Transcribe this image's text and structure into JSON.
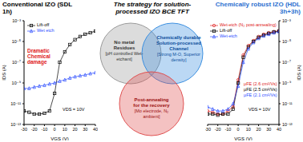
{
  "title": "The strategy for solution-processed IZO BCE TFT",
  "chart_data": [
    {
      "type": "line",
      "title": "Conventional IZO (SDL 1h)",
      "x_label": "VGS (V)",
      "y_label": "IDS (A)",
      "log": "y",
      "legend": "upper left",
      "xlim": [
        -30,
        40
      ],
      "xticks": [
        -30,
        -20,
        -10,
        0,
        10,
        20,
        30,
        40
      ],
      "ylim": [
        1e-13,
        0.001
      ],
      "yticks": [
        {
          "value": 1e-13,
          "label": "10⁻¹³"
        },
        {
          "value": 1e-11,
          "label": "10⁻¹¹"
        },
        {
          "value": 1e-09,
          "label": "10⁻⁹"
        },
        {
          "value": 1e-07,
          "label": "10⁻⁷"
        },
        {
          "value": 1e-05,
          "label": "10⁻⁵"
        },
        {
          "value": 0.001,
          "label": "10⁻³"
        }
      ],
      "x": [
        -30,
        -25,
        -20,
        -15,
        -10,
        -5,
        0,
        5,
        10,
        15,
        20,
        25,
        30,
        35,
        40
      ],
      "series": [
        {
          "name": "Lift-off",
          "color": "#000000",
          "marker": "square",
          "values": [
            2e-12,
            1.5e-12,
            1e-12,
            1e-12,
            1.2e-12,
            2e-12,
            1e-10,
            1e-07,
            1e-06,
            5e-06,
            1.5e-05,
            3e-05,
            5e-05,
            7e-05,
            0.0001
          ]
        },
        {
          "name": "Wet etch",
          "color": "#2b4cff",
          "marker": "triangle",
          "values": [
            3e-10,
            3e-10,
            4e-10,
            5e-10,
            6e-10,
            8e-10,
            1e-09,
            1.5e-09,
            2e-09,
            3e-09,
            4e-09,
            5e-09,
            6e-09,
            8e-09,
            1e-08
          ]
        }
      ],
      "annotations": [
        "Dramatic Chemical damage",
        "VDS = 10V"
      ]
    },
    {
      "type": "line",
      "title": "Chemically robust IZO (HDL 3h+3h)",
      "x_label": "VGS (V)",
      "y_label": "IDS (A)",
      "log": "y",
      "legend": "upper left",
      "xlim": [
        -30,
        40
      ],
      "xticks": [
        -30,
        -20,
        -10,
        0,
        10,
        20,
        30,
        40
      ],
      "ylim": [
        1e-13,
        0.001
      ],
      "yticks": [
        {
          "value": 1e-13,
          "label": "10⁻¹³"
        },
        {
          "value": 1e-11,
          "label": "10⁻¹¹"
        },
        {
          "value": 1e-09,
          "label": "10⁻⁹"
        },
        {
          "value": 1e-07,
          "label": "10⁻⁷"
        },
        {
          "value": 1e-05,
          "label": "10⁻⁵"
        },
        {
          "value": 0.001,
          "label": "10⁻³"
        }
      ],
      "x": [
        -30,
        -25,
        -20,
        -15,
        -10,
        -5,
        0,
        5,
        10,
        15,
        20,
        25,
        30,
        35,
        40
      ],
      "series": [
        {
          "name": "Wet-etch (N₂ post-annealing)",
          "color": "#e02020",
          "marker": "circle",
          "values": [
            2e-12,
            1.5e-12,
            1e-12,
            1e-12,
            2e-12,
            5e-12,
            2e-09,
            5e-07,
            4e-06,
            1.2e-05,
            3e-05,
            5e-05,
            7e-05,
            9e-05,
            0.00011
          ]
        },
        {
          "name": "Lift-off",
          "color": "#000000",
          "marker": "square",
          "values": [
            1e-12,
            1e-12,
            8e-13,
            1e-12,
            1e-12,
            3e-12,
            1e-09,
            3e-07,
            3e-06,
            1e-05,
            2.5e-05,
            4e-05,
            6e-05,
            8e-05,
            0.0001
          ]
        },
        {
          "name": "Wet-etch",
          "color": "#2b4cff",
          "marker": "triangle",
          "values": [
            5e-12,
            3e-12,
            2e-12,
            2e-12,
            3e-12,
            1e-11,
            5e-10,
            1e-07,
            2e-06,
            8e-06,
            2e-05,
            3.5e-05,
            5e-05,
            7e-05,
            9e-05
          ]
        }
      ],
      "annotations": [
        "μFE (2.6 cm²/Vs)",
        "μFE (2.5 cm²/Vs)",
        "μFE (2.1 cm²/Vs)",
        "VDS = 10V"
      ]
    }
  ],
  "diagram": {
    "circles": [
      {
        "lines": [
          "No metal",
          "Residues"
        ],
        "detail": "[pH controlled Wet-etchant]",
        "color": "#9a9a9a"
      },
      {
        "lines": [
          "Chemically durable",
          "Solution-processed",
          "Channel"
        ],
        "detail": "[Strong M-O, Superior density]",
        "color": "#3b8fe0"
      },
      {
        "lines": [
          "Post-annealing",
          "for the recovery"
        ],
        "detail": "[Mo electrode, N₂ ambient]",
        "color": "#e05050"
      }
    ]
  }
}
